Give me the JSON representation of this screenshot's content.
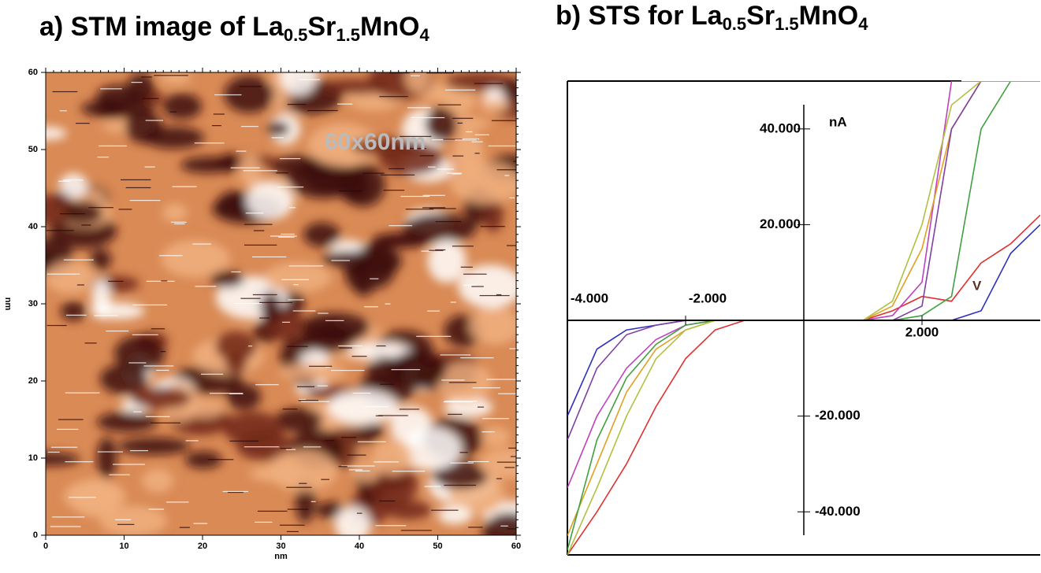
{
  "chart_data": [
    {
      "type": "heatmap",
      "title": "a) STM image of La0.5Sr1.5MnO4",
      "xlabel": "nm",
      "ylabel": "nm",
      "annotation": "60x60nm",
      "xlim": [
        0,
        60
      ],
      "ylim": [
        0,
        60
      ],
      "xticks": [
        0,
        10,
        20,
        30,
        40,
        50,
        60
      ],
      "yticks": [
        0,
        10,
        20,
        30,
        40,
        50,
        60
      ]
    },
    {
      "type": "line",
      "title": "b)  STS for La0.5Sr1.5MnO4",
      "ylabel": "nA",
      "xlabel": "V",
      "xlim": [
        -4,
        4
      ],
      "ylim": [
        -49,
        50
      ],
      "xticks": [
        {
          "value": -4,
          "label": "-4.000"
        },
        {
          "value": -2,
          "label": "-2.000"
        },
        {
          "value": 2,
          "label": "2.000"
        }
      ],
      "yticks": [
        {
          "value": -40,
          "label": "-40.000"
        },
        {
          "value": -20,
          "label": "-20.000"
        },
        {
          "value": 20,
          "label": "20.000"
        },
        {
          "value": 40,
          "label": "40.000"
        }
      ],
      "x": [
        -4,
        -3.5,
        -3,
        -2.5,
        -2,
        -1.5,
        -1,
        0,
        1,
        1.5,
        2,
        2.5,
        3,
        3.5,
        4
      ],
      "series": [
        {
          "color": "#e03030",
          "values": [
            -49,
            -40,
            -30,
            -18,
            -8,
            -2,
            0,
            0,
            0,
            2,
            5,
            4,
            12,
            16,
            22
          ]
        },
        {
          "color": "#c040c0",
          "values": [
            -35,
            -20,
            -10,
            -4,
            -1,
            0,
            0,
            0,
            0,
            1,
            8,
            50,
            50,
            50,
            50
          ]
        },
        {
          "color": "#e0a020",
          "values": [
            -45,
            -30,
            -15,
            -6,
            -2,
            0,
            0,
            0,
            0,
            3,
            15,
            40,
            50,
            50,
            50
          ]
        },
        {
          "color": "#40a040",
          "values": [
            -48,
            -25,
            -12,
            -5,
            -1,
            0,
            0,
            0,
            0,
            0,
            1,
            5,
            40,
            50,
            50
          ]
        },
        {
          "color": "#3030c0",
          "values": [
            -20,
            -6,
            -2,
            -1,
            0,
            0,
            0,
            0,
            0,
            0,
            0,
            0,
            2,
            14,
            20
          ]
        },
        {
          "color": "#8040a0",
          "values": [
            -25,
            -10,
            -3,
            -1,
            0,
            0,
            0,
            0,
            0,
            0,
            3,
            40,
            50,
            50,
            50
          ]
        },
        {
          "color": "#b0c040",
          "values": [
            -49,
            -35,
            -20,
            -8,
            -2,
            0,
            0,
            0,
            0,
            4,
            20,
            45,
            50,
            50,
            50
          ]
        }
      ]
    }
  ]
}
